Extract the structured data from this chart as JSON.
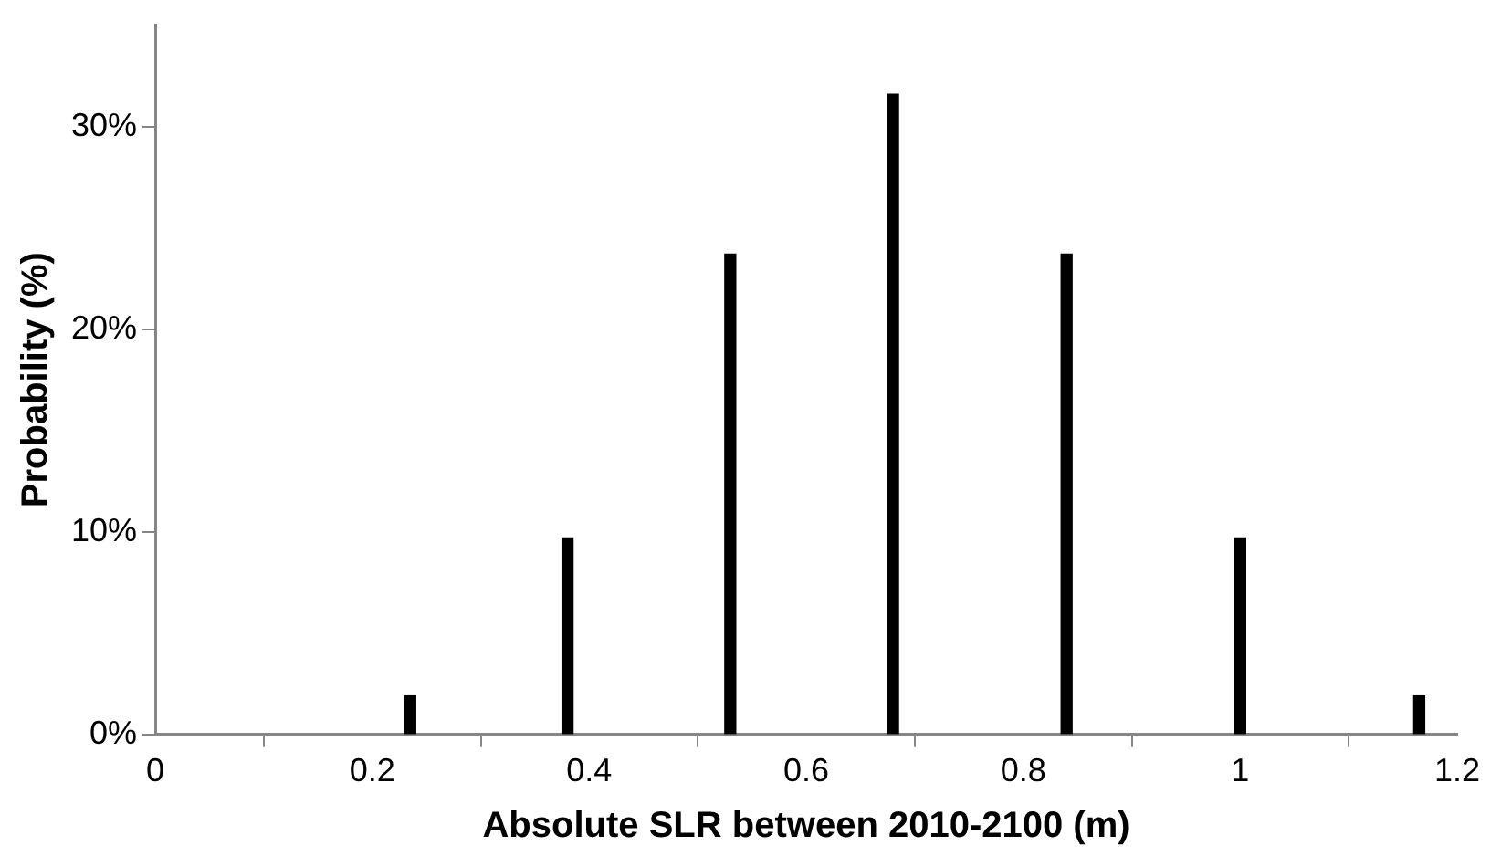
{
  "chart_data": {
    "type": "bar",
    "xlabel": "Absolute SLR between 2010-2100 (m)",
    "ylabel": "Probability (%)",
    "x": [
      0.235,
      0.38,
      0.53,
      0.68,
      0.84,
      1.0,
      1.165
    ],
    "series": [
      {
        "color": "#000000",
        "values": [
          1.9,
          9.7,
          23.7,
          31.6,
          23.7,
          9.7,
          1.9
        ]
      }
    ],
    "xlim": [
      0,
      1.2
    ],
    "xticks": [
      0,
      0.2,
      0.4,
      0.6,
      0.8,
      1,
      1.2
    ],
    "ylim": [
      0,
      35
    ],
    "yticks": [
      {
        "value": 0,
        "label": "0%"
      },
      {
        "value": 10,
        "label": "10%"
      },
      {
        "value": 20,
        "label": "20%"
      },
      {
        "value": 30,
        "label": "30%"
      }
    ],
    "grid": false,
    "legend": false
  }
}
